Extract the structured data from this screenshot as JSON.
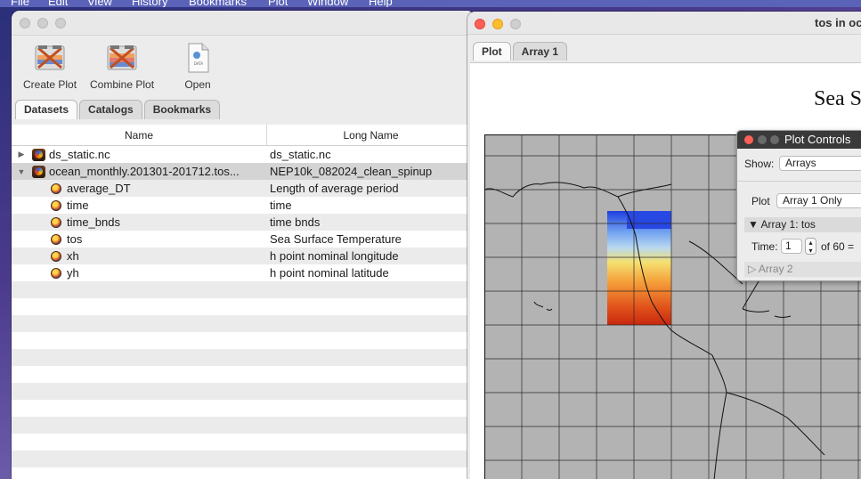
{
  "menubar": {
    "items": [
      "File",
      "Edit",
      "View",
      "History",
      "Bookmarks",
      "Plot",
      "Window",
      "Help"
    ]
  },
  "left_window": {
    "toolbar": {
      "create_plot": "Create Plot",
      "combine_plot": "Combine Plot",
      "open": "Open",
      "open_icon_caption": "DATA"
    },
    "tabs": [
      "Datasets",
      "Catalogs",
      "Bookmarks"
    ],
    "table": {
      "columns": [
        "Name",
        "Long Name"
      ],
      "rows": [
        {
          "name": "ds_static.nc",
          "long_name": "ds_static.nc"
        },
        {
          "name": "ocean_monthly.201301-201712.tos...",
          "long_name": "NEP10k_082024_clean_spinup"
        },
        {
          "name": "average_DT",
          "long_name": "Length of average period"
        },
        {
          "name": "time",
          "long_name": "time"
        },
        {
          "name": "time_bnds",
          "long_name": "time bnds"
        },
        {
          "name": "tos",
          "long_name": "Sea Surface Temperature"
        },
        {
          "name": "xh",
          "long_name": "h point nominal longitude"
        },
        {
          "name": "yh",
          "long_name": "h point nominal latitude"
        }
      ]
    }
  },
  "right_window": {
    "title": "tos in oc",
    "tabs": [
      "Plot",
      "Array 1"
    ],
    "plot_title": "Sea S"
  },
  "plot_controls": {
    "title": "Plot Controls",
    "show_label": "Show:",
    "show_value": "Arrays",
    "plot_label": "Plot",
    "plot_value": "Array 1 Only",
    "array1_header": "▼ Array 1: tos",
    "time_label": "Time:",
    "time_value": "1",
    "time_of": "of 60 =",
    "array2_header": "▷ Array 2"
  },
  "colors": {
    "close": "#fe5f57",
    "minimize": "#febc2e",
    "inactive": "#cfcfcf",
    "map_background": "#b3b3b3",
    "sst_warm": "#d83a12",
    "sst_cold": "#1f3ee0"
  }
}
